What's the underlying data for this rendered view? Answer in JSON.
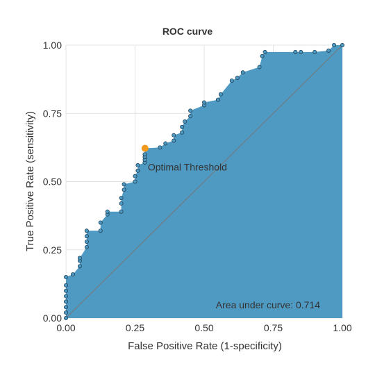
{
  "chart_data": {
    "type": "area",
    "title": "ROC curve",
    "xlabel": "False Positive Rate (1-specificity)",
    "ylabel": "True Positive Rate (sensitivity)",
    "xlim": [
      0,
      1
    ],
    "ylim": [
      0,
      1
    ],
    "xticks": [
      "0.00",
      "0.25",
      "0.50",
      "0.75",
      "1.00"
    ],
    "yticks": [
      "0.00",
      "0.25",
      "0.50",
      "0.75",
      "1.00"
    ],
    "grid": true,
    "colors": {
      "area": "#4f9ac2",
      "point": "#4f9ac2",
      "point_stroke": "#1f3f55",
      "optimal": "#f39a1e",
      "diagonal": "#777777",
      "grid": "#e3e3e3"
    },
    "optimal_point": {
      "x": 0.286,
      "y": 0.622,
      "label": "Optimal Threshold"
    },
    "auc_label": "Area under curve: 0.714",
    "series": [
      {
        "values": [
          [
            0.0,
            0.0
          ],
          [
            0.0,
            0.02
          ],
          [
            0.0,
            0.04
          ],
          [
            0.0,
            0.06
          ],
          [
            0.0,
            0.08
          ],
          [
            0.0,
            0.1
          ],
          [
            0.0,
            0.12
          ],
          [
            0.0,
            0.15
          ],
          [
            0.025,
            0.16
          ],
          [
            0.05,
            0.19
          ],
          [
            0.05,
            0.21
          ],
          [
            0.05,
            0.22
          ],
          [
            0.075,
            0.26
          ],
          [
            0.075,
            0.28
          ],
          [
            0.075,
            0.3
          ],
          [
            0.075,
            0.32
          ],
          [
            0.125,
            0.32
          ],
          [
            0.125,
            0.35
          ],
          [
            0.15,
            0.38
          ],
          [
            0.15,
            0.39
          ],
          [
            0.2,
            0.39
          ],
          [
            0.2,
            0.42
          ],
          [
            0.2,
            0.44
          ],
          [
            0.21,
            0.47
          ],
          [
            0.21,
            0.49
          ],
          [
            0.25,
            0.5
          ],
          [
            0.25,
            0.52
          ],
          [
            0.26,
            0.54
          ],
          [
            0.26,
            0.56
          ],
          [
            0.285,
            0.57
          ],
          [
            0.285,
            0.58
          ],
          [
            0.285,
            0.59
          ],
          [
            0.285,
            0.6
          ],
          [
            0.286,
            0.622
          ],
          [
            0.34,
            0.625
          ],
          [
            0.36,
            0.64
          ],
          [
            0.39,
            0.65
          ],
          [
            0.39,
            0.67
          ],
          [
            0.42,
            0.68
          ],
          [
            0.42,
            0.7
          ],
          [
            0.43,
            0.72
          ],
          [
            0.45,
            0.74
          ],
          [
            0.45,
            0.76
          ],
          [
            0.5,
            0.78
          ],
          [
            0.5,
            0.79
          ],
          [
            0.55,
            0.8
          ],
          [
            0.56,
            0.82
          ],
          [
            0.6,
            0.87
          ],
          [
            0.62,
            0.88
          ],
          [
            0.64,
            0.9
          ],
          [
            0.7,
            0.92
          ],
          [
            0.71,
            0.96
          ],
          [
            0.72,
            0.975
          ],
          [
            0.83,
            0.975
          ],
          [
            0.85,
            0.975
          ],
          [
            0.9,
            0.975
          ],
          [
            0.95,
            0.98
          ],
          [
            0.97,
            1.0
          ],
          [
            1.0,
            1.0
          ]
        ]
      }
    ]
  }
}
